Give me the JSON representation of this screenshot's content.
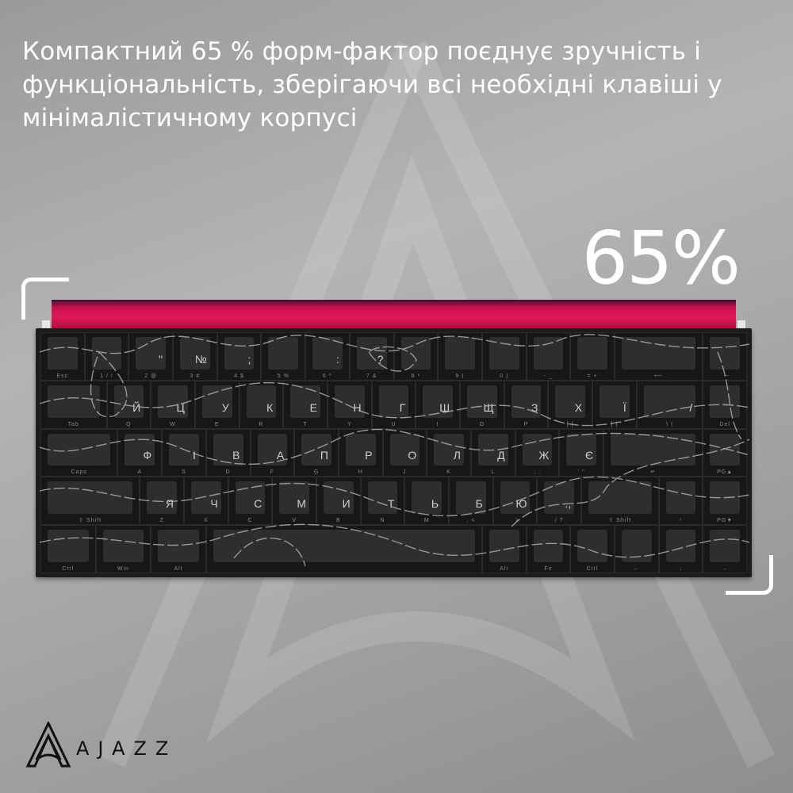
{
  "headline": "Компактний 65 % форм-фактор поєднує зручність і функціональність, зберігаючи всі необхідні клавіші у мінімалістичному корпусі",
  "big_label": "65%",
  "brand": "AJAZZ",
  "colors": {
    "accent": "#e0185a",
    "keycap": "#2e2e2e",
    "text": "#ffffff"
  },
  "keyboard": {
    "rows": [
      [
        {
          "l": "",
          "s": "Esc",
          "w": 1
        },
        {
          "l": "",
          "s": "1 / !",
          "w": 1
        },
        {
          "l": "\"",
          "s": "2 @",
          "w": 1
        },
        {
          "l": "№",
          "s": "3 #",
          "w": 1
        },
        {
          "l": ";",
          "s": "4 $",
          "w": 1
        },
        {
          "l": "",
          "s": "5 %",
          "w": 1
        },
        {
          "l": ":",
          "s": "6 ^",
          "w": 1
        },
        {
          "l": "?",
          "s": "7 &",
          "w": 1
        },
        {
          "l": "",
          "s": "8 *",
          "w": 1
        },
        {
          "l": "",
          "s": "9 (",
          "w": 1
        },
        {
          "l": "",
          "s": "0 )",
          "w": 1
        },
        {
          "l": "",
          "s": "- _",
          "w": 1
        },
        {
          "l": "",
          "s": "= +",
          "w": 1
        },
        {
          "l": "",
          "s": "⟵",
          "w": 2
        },
        {
          "l": "",
          "s": "` ~",
          "w": 1
        }
      ],
      [
        {
          "l": "",
          "s": "Tab",
          "w": 1.5
        },
        {
          "l": "Й",
          "s": "Q",
          "w": 1
        },
        {
          "l": "Ц",
          "s": "W",
          "w": 1
        },
        {
          "l": "У",
          "s": "E",
          "w": 1
        },
        {
          "l": "К",
          "s": "R",
          "w": 1
        },
        {
          "l": "Е",
          "s": "T",
          "w": 1
        },
        {
          "l": "Н",
          "s": "Y",
          "w": 1
        },
        {
          "l": "Г",
          "s": "U",
          "w": 1
        },
        {
          "l": "Ш",
          "s": "I",
          "w": 1
        },
        {
          "l": "Щ",
          "s": "O",
          "w": 1
        },
        {
          "l": "З",
          "s": "P",
          "w": 1
        },
        {
          "l": "Х",
          "s": "[ {",
          "w": 1
        },
        {
          "l": "Ї",
          "s": "] }",
          "w": 1
        },
        {
          "l": "/",
          "s": "\\ |",
          "w": 1.5
        },
        {
          "l": "",
          "s": "Del",
          "w": 1
        }
      ],
      [
        {
          "l": "",
          "s": "Caps",
          "w": 1.75
        },
        {
          "l": "Ф",
          "s": "A",
          "w": 1
        },
        {
          "l": "І",
          "s": "S",
          "w": 1
        },
        {
          "l": "В",
          "s": "D",
          "w": 1
        },
        {
          "l": "А",
          "s": "F",
          "w": 1
        },
        {
          "l": "П",
          "s": "G",
          "w": 1
        },
        {
          "l": "Р",
          "s": "H",
          "w": 1
        },
        {
          "l": "О",
          "s": "J",
          "w": 1
        },
        {
          "l": "Л",
          "s": "K",
          "w": 1
        },
        {
          "l": "Д",
          "s": "L",
          "w": 1
        },
        {
          "l": "Ж",
          "s": "; :",
          "w": 1
        },
        {
          "l": "Є",
          "s": "' \"",
          "w": 1
        },
        {
          "l": "",
          "s": "↵",
          "w": 2.25
        },
        {
          "l": "",
          "s": "PG▲",
          "w": 1
        }
      ],
      [
        {
          "l": "",
          "s": "⇧ Shift",
          "w": 2.25
        },
        {
          "l": "Я",
          "s": "Z",
          "w": 1
        },
        {
          "l": "Ч",
          "s": "X",
          "w": 1
        },
        {
          "l": "С",
          "s": "C",
          "w": 1
        },
        {
          "l": "М",
          "s": "V",
          "w": 1
        },
        {
          "l": "И",
          "s": "B",
          "w": 1
        },
        {
          "l": "Т",
          "s": "N",
          "w": 1
        },
        {
          "l": "Ь",
          "s": "M",
          "w": 1
        },
        {
          "l": "Б",
          "s": ", <",
          "w": 1
        },
        {
          "l": "Ю",
          "s": ". >",
          "w": 1
        },
        {
          "l": ".,",
          "s": "/ ?",
          "w": 1
        },
        {
          "l": "",
          "s": "⇧ Shift",
          "w": 1.75
        },
        {
          "l": "",
          "s": "↑",
          "w": 1
        },
        {
          "l": "",
          "s": "PG▼",
          "w": 1
        }
      ],
      [
        {
          "l": "",
          "s": "Ctrl",
          "w": 1.25
        },
        {
          "l": "",
          "s": "Win",
          "w": 1.25
        },
        {
          "l": "",
          "s": "Alt",
          "w": 1.25
        },
        {
          "l": "",
          "s": "",
          "w": 6.25
        },
        {
          "l": "",
          "s": "Alt",
          "w": 1
        },
        {
          "l": "",
          "s": "Fn",
          "w": 1
        },
        {
          "l": "",
          "s": "Ctrl",
          "w": 1
        },
        {
          "l": "",
          "s": "←",
          "w": 1
        },
        {
          "l": "",
          "s": "↓",
          "w": 1
        },
        {
          "l": "",
          "s": "→",
          "w": 1
        }
      ]
    ]
  }
}
